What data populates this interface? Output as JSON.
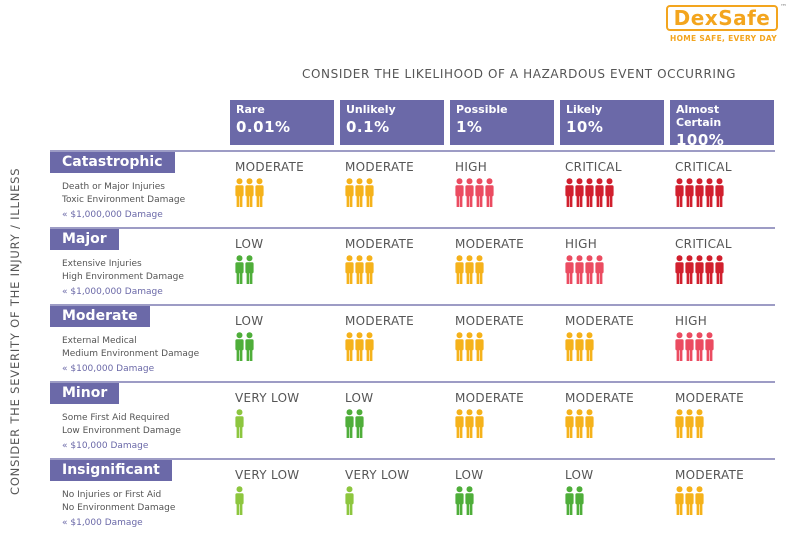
{
  "brand": {
    "name": "DexSafe",
    "tm": "™",
    "tagline": "HOME SAFE, EVERY DAY",
    "color": "#f3a51e"
  },
  "likelihood_title": "CONSIDER THE LIKELIHOOD OF A HAZARDOUS EVENT OCCURRING",
  "severity_title": "CONSIDER THE SEVERITY OF THE INJURY / ILLNESS",
  "likelihoods": [
    {
      "label": "Rare",
      "percent": "0.01%"
    },
    {
      "label": "Unlikely",
      "percent": "0.1%"
    },
    {
      "label": "Possible",
      "percent": "1%"
    },
    {
      "label": "Likely",
      "percent": "10%"
    },
    {
      "label": "Almost Certain",
      "percent": "100%"
    }
  ],
  "levels": {
    "VERY LOW": {
      "color": "#8dc63f",
      "count": 1
    },
    "LOW": {
      "color": "#4fae3a",
      "count": 2
    },
    "MODERATE": {
      "color": "#f5b21b",
      "count": 3
    },
    "HIGH": {
      "color": "#eb4c61",
      "count": 4
    },
    "CRITICAL": {
      "color": "#d1202e",
      "count": 5
    }
  },
  "severities": [
    {
      "name": "Catastrophic",
      "desc1": "Death or Major Injuries",
      "desc2": "Toxic Environment Damage",
      "damage": "« $1,000,000 Damage",
      "cells": [
        "MODERATE",
        "MODERATE",
        "HIGH",
        "CRITICAL",
        "CRITICAL"
      ]
    },
    {
      "name": "Major",
      "desc1": "Extensive Injuries",
      "desc2": "High Environment Damage",
      "damage": "« $1,000,000 Damage",
      "cells": [
        "LOW",
        "MODERATE",
        "MODERATE",
        "HIGH",
        "CRITICAL"
      ]
    },
    {
      "name": "Moderate",
      "desc1": "External Medical",
      "desc2": "Medium Environment Damage",
      "damage": "« $100,000 Damage",
      "cells": [
        "LOW",
        "MODERATE",
        "MODERATE",
        "MODERATE",
        "HIGH"
      ]
    },
    {
      "name": "Minor",
      "desc1": "Some First Aid Required",
      "desc2": "Low Environment Damage",
      "damage": "« $10,000 Damage",
      "cells": [
        "VERY LOW",
        "LOW",
        "MODERATE",
        "MODERATE",
        "MODERATE"
      ]
    },
    {
      "name": "Insignificant",
      "desc1": "No Injuries or First Aid",
      "desc2": "No Environment Damage",
      "damage": "« $1,000 Damage",
      "cells": [
        "VERY LOW",
        "VERY LOW",
        "LOW",
        "LOW",
        "MODERATE"
      ]
    }
  ]
}
